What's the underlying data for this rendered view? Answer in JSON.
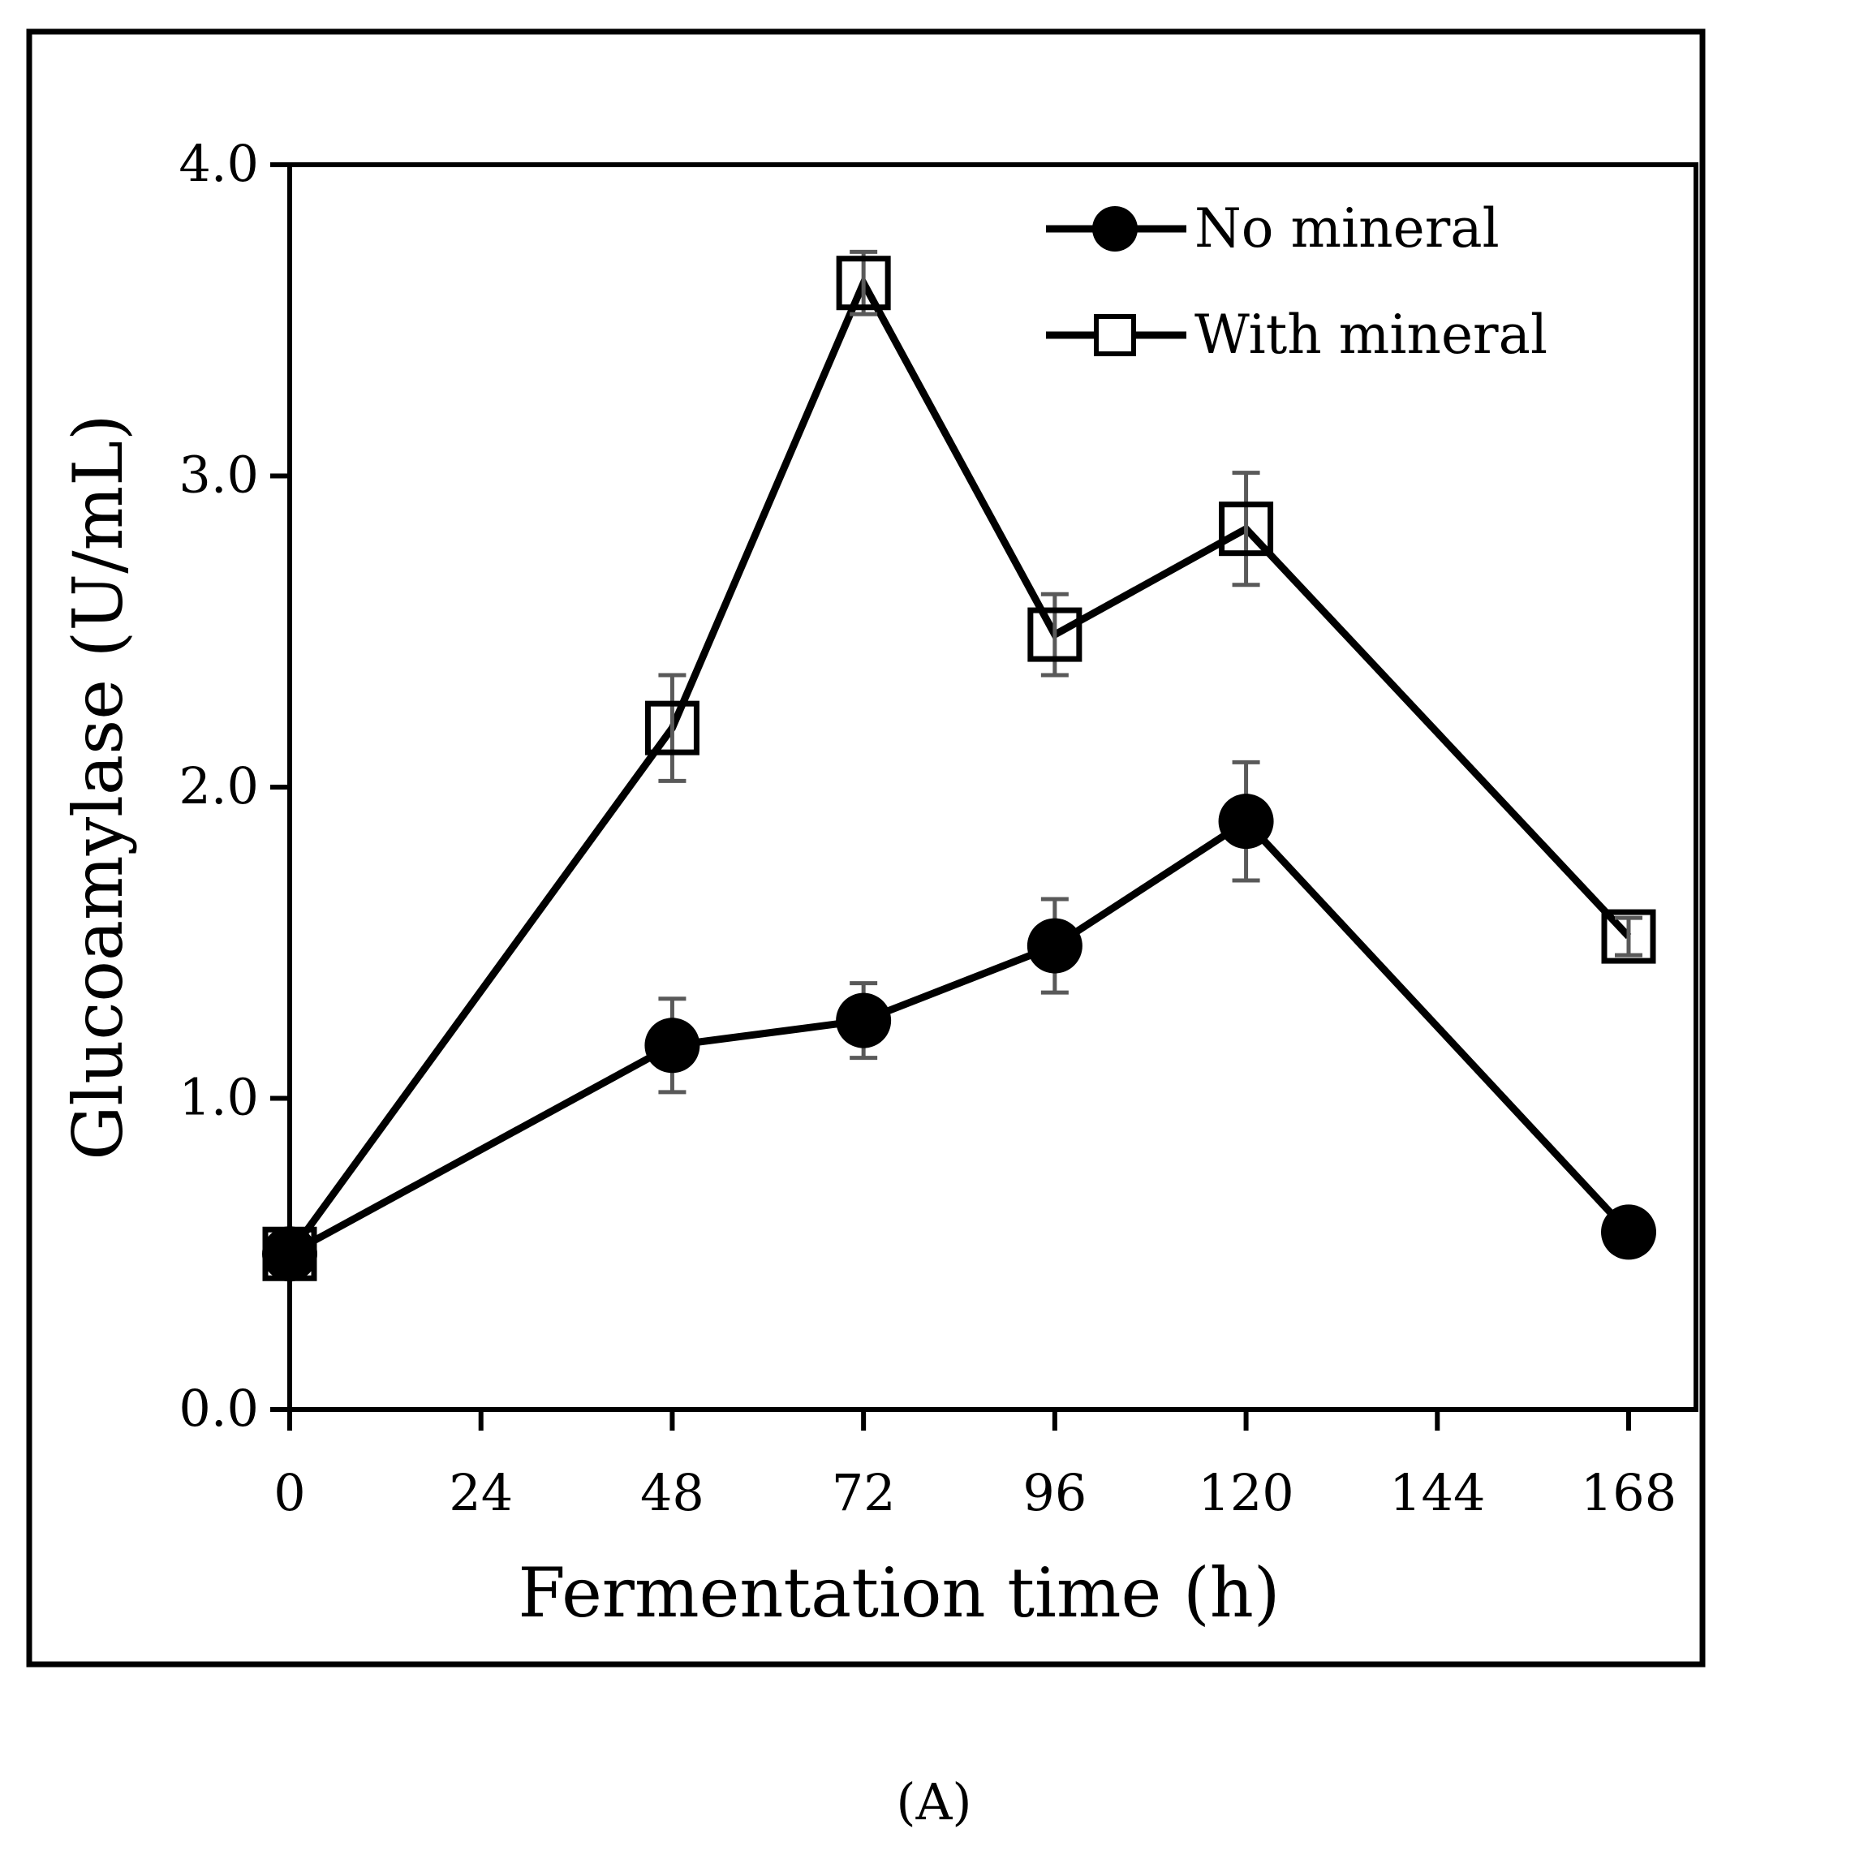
{
  "chart_data": {
    "type": "line",
    "title": "",
    "xlabel": "Fermentation time (h)",
    "ylabel": "Glucoamylase (U/mL)",
    "xlim": [
      0,
      180
    ],
    "ylim": [
      0,
      4
    ],
    "xticks": [
      0,
      24,
      48,
      72,
      96,
      120,
      144,
      168
    ],
    "yticks": [
      0.0,
      1.0,
      2.0,
      3.0,
      4.0
    ],
    "xtick_labels": [
      "0",
      "24",
      "48",
      "72",
      "96",
      "120",
      "144",
      "168"
    ],
    "ytick_labels": [
      "0.0",
      "1.0",
      "2.0",
      "3.0",
      "4.0"
    ],
    "x": [
      0,
      48,
      72,
      96,
      120,
      168
    ],
    "series": [
      {
        "name": "No mineral",
        "marker": "filled-circle",
        "values": [
          0.5,
          1.17,
          1.25,
          1.49,
          1.89,
          0.57
        ],
        "errors": [
          0.0,
          0.15,
          0.12,
          0.15,
          0.19,
          0.0
        ]
      },
      {
        "name": "With mineral",
        "marker": "open-square",
        "values": [
          0.5,
          2.19,
          3.62,
          2.49,
          2.83,
          1.52
        ],
        "errors": [
          0.0,
          0.17,
          0.1,
          0.13,
          0.18,
          0.06
        ]
      }
    ],
    "legend_position": "top-right",
    "grid": false
  },
  "panel_label": "(A)",
  "colors": {
    "line": "#000000",
    "error_bar": "#595959",
    "background": "#ffffff"
  }
}
